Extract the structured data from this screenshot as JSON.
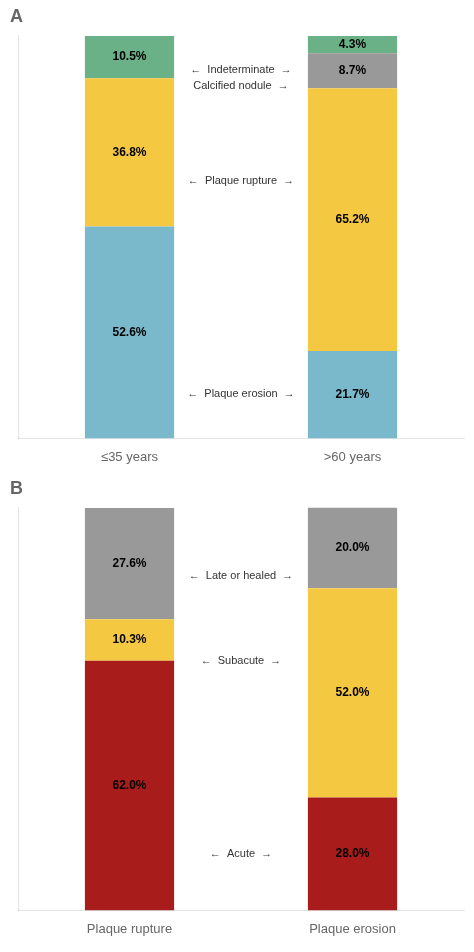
{
  "chart_data": [
    {
      "type": "bar",
      "title": "A",
      "stacked": true,
      "categories": [
        "≤35 years",
        ">60 years"
      ],
      "series": [
        {
          "color": "#7ab8cc",
          "values": [
            52.6,
            21.7
          ],
          "value_labels": [
            "52.6%",
            "21.7%"
          ]
        },
        {
          "color": "#f5c842",
          "values": [
            36.8,
            65.2
          ],
          "value_labels": [
            "36.8%",
            "65.2%"
          ]
        },
        {
          "color": "#999999",
          "values": [
            null,
            8.7
          ],
          "value_labels": [
            null,
            "8.7%"
          ]
        },
        {
          "color": "#6ab187",
          "values": [
            10.5,
            4.3
          ],
          "value_labels": [
            "10.5%",
            "4.3%"
          ]
        }
      ],
      "ylim": [
        0,
        100
      ],
      "tick_labels": "x",
      "grid": false,
      "data_labels": true,
      "annotations": [
        {
          "text": "←  Indeterminate  →",
          "y": 91.5
        },
        {
          "text": "Calcified nodule  →",
          "y": 87.5
        },
        {
          "text": "←  Plaque rupture  →",
          "y": 64.0
        },
        {
          "text": "←  Plaque erosion  →",
          "y": 11.0
        }
      ]
    },
    {
      "type": "bar",
      "title": "B",
      "stacked": true,
      "categories": [
        "Plaque rupture",
        "Plaque erosion"
      ],
      "series": [
        {
          "color": "#a81c1c",
          "values": [
            62.0,
            28.0
          ],
          "value_labels": [
            "62.0%",
            "28.0%"
          ]
        },
        {
          "color": "#f5c842",
          "values": [
            10.3,
            52.0
          ],
          "value_labels": [
            "10.3%",
            "52.0%"
          ]
        },
        {
          "color": "#999999",
          "values": [
            27.6,
            20.0
          ],
          "value_labels": [
            "27.6%",
            "20.0%"
          ]
        }
      ],
      "ylim": [
        0,
        100
      ],
      "tick_labels": "x",
      "grid": false,
      "data_labels": true,
      "annotations": [
        {
          "text": "←  Late or healed  →",
          "y": 83.0
        },
        {
          "text": "←  Subacute  →",
          "y": 62.0
        },
        {
          "text": "←  Acute  →",
          "y": 14.0
        }
      ]
    }
  ]
}
